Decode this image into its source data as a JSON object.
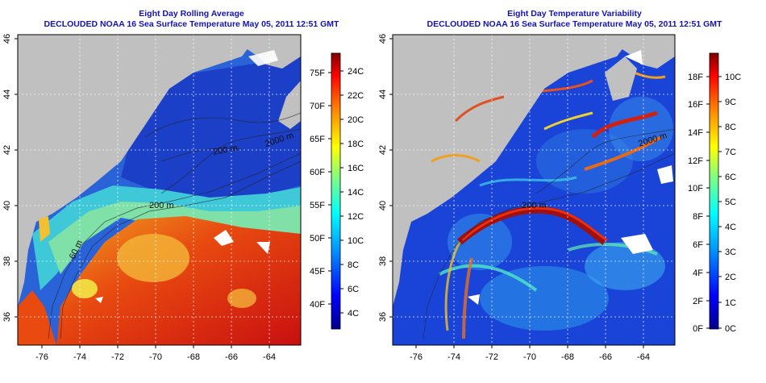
{
  "left_panel": {
    "title_line1": "Eight Day Rolling Average",
    "title_line2": "DECLOUDED NOAA 16 Sea Surface Temperature May 05, 2011 12:51 GMT",
    "lon_ticks": [
      "-76",
      "-74",
      "-72",
      "-70",
      "-68",
      "-66",
      "-64"
    ],
    "lat_ticks": [
      "46",
      "44",
      "42",
      "40",
      "38",
      "36"
    ],
    "contours": [
      "2000 m",
      "200 m",
      "200 m",
      "60 m"
    ],
    "colorbar_f": [
      "75F",
      "70F",
      "65F",
      "60F",
      "55F",
      "50F",
      "45F",
      "40F"
    ],
    "colorbar_c": [
      "24C",
      "22C",
      "20C",
      "18C",
      "16C",
      "14C",
      "12C",
      "10C",
      "8C",
      "6C",
      "4C"
    ]
  },
  "right_panel": {
    "title_line1": "Eight Day Temperature Variability",
    "title_line2": "DECLOUDED NOAA 16 Sea Surface Temperature May 05, 2011 12:51 GMT",
    "lon_ticks": [
      "-76",
      "-74",
      "-72",
      "-70",
      "-68",
      "-66",
      "-64"
    ],
    "lat_ticks": [
      "46",
      "44",
      "42",
      "40",
      "38",
      "36"
    ],
    "contours": [
      "2000 m",
      "200 m"
    ],
    "colorbar_f": [
      "18F",
      "16F",
      "14F",
      "12F",
      "10F",
      "8F",
      "6F",
      "4F",
      "2F",
      "0F"
    ],
    "colorbar_c": [
      "10C",
      "9C",
      "8C",
      "7C",
      "6C",
      "5C",
      "4C",
      "3C",
      "2C",
      "1C",
      "0C"
    ]
  },
  "colors": {
    "title_blue": "#1212b8",
    "land_gray": "#c0c0c0"
  }
}
